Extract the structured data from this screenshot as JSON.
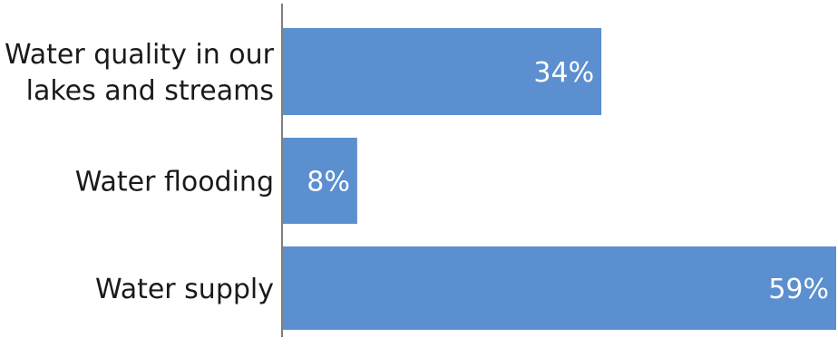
{
  "chart_data": {
    "type": "bar",
    "orientation": "horizontal",
    "categories": [
      [
        "Water quality in our",
        "lakes and streams"
      ],
      [
        "Water flooding"
      ],
      [
        "Water supply"
      ]
    ],
    "values": [
      34,
      8,
      59
    ],
    "value_labels": [
      "34%",
      "8%",
      "59%"
    ],
    "xlim": [
      0,
      59
    ],
    "bar_color": "#5b8fd0",
    "axis_color": "#7f7f7f",
    "grid": false,
    "legend": "none"
  }
}
